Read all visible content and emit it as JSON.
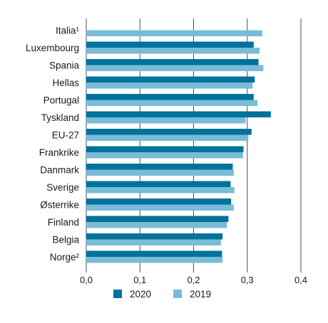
{
  "chart_data": {
    "type": "bar",
    "orientation": "horizontal",
    "categories": [
      "Italia¹",
      "Luxembourg",
      "Spania",
      "Hellas",
      "Portugal",
      "Tyskland",
      "EU-27",
      "Frankrike",
      "Danmark",
      "Sverige",
      "Østerrike",
      "Finland",
      "Belgia",
      "Norge²"
    ],
    "series": [
      {
        "name": "2020",
        "color": "#00729b",
        "values": [
          null,
          0.312,
          0.321,
          0.314,
          0.312,
          0.344,
          0.308,
          0.293,
          0.273,
          0.269,
          0.27,
          0.265,
          0.254,
          0.253
        ]
      },
      {
        "name": "2019",
        "color": "#79bcd8",
        "values": [
          0.328,
          0.323,
          0.33,
          0.31,
          0.319,
          0.297,
          0.302,
          0.292,
          0.275,
          0.276,
          0.275,
          0.262,
          0.251,
          0.254
        ]
      }
    ],
    "xlim": [
      0,
      0.4
    ],
    "xticks": [
      "0,0",
      "0,1",
      "0,2",
      "0,3",
      "0,4"
    ],
    "grid": true,
    "legend": "bottom",
    "title": "",
    "xlabel": "",
    "ylabel": ""
  }
}
